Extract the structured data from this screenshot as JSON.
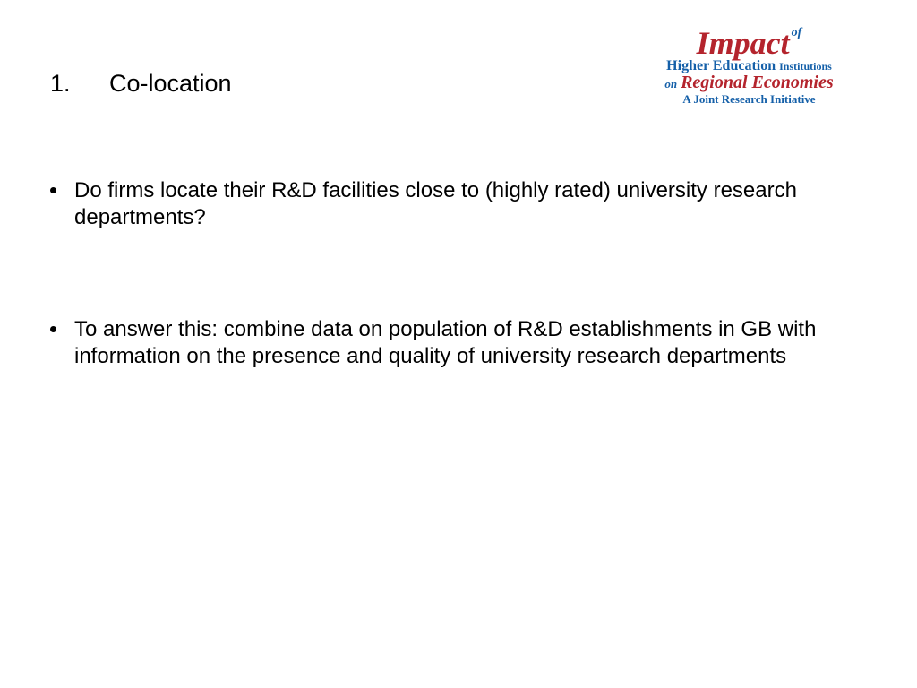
{
  "title": {
    "number": "1.",
    "text": "Co-location"
  },
  "logo": {
    "line1_main": "Impact",
    "line1_of": "of",
    "line2_prefix": "Higher Education",
    "line2_suffix": "Institutions",
    "line3_on": "on",
    "line3_main": "Regional Economies",
    "line4": "A Joint Research Initiative",
    "colors": {
      "red": "#b4242d",
      "blue": "#1560a9"
    }
  },
  "bullets": [
    {
      "text": "Do firms locate their R&D facilities close to (highly rated) university research departments?"
    },
    {
      "text": "To answer this: combine data on population of R&D establishments in GB with information on the presence and quality of university research departments"
    }
  ]
}
